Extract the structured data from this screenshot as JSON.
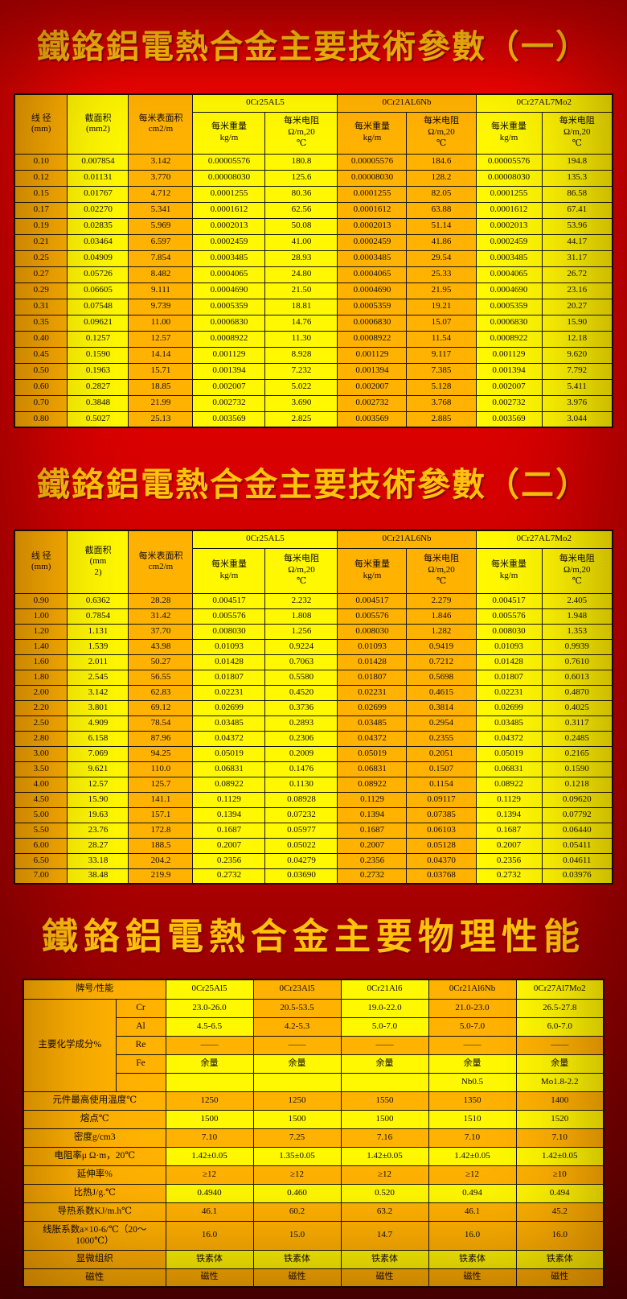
{
  "titles": {
    "t1": "鐵鉻鋁電熱合金主要技術參數（一）",
    "t2": "鐵鉻鋁電熱合金主要技術參數（二）",
    "t3": "鐵鉻鋁電熱合金主要物理性能"
  },
  "colors": {
    "cell_orange": "#ffb200",
    "cell_yellow": "#fff800",
    "background_red": "#d60000",
    "title_gold": "#ffc30e",
    "text_black": "#100c00"
  },
  "table1": {
    "headers": {
      "diameter": "线 径\n(mm)",
      "section_area": "截面积\n(mm2)",
      "surface_area": "每米表面积\ncm2/m",
      "weight": "每米重量\nkg/m",
      "resistance": "每米电阻\nΩ/m,20\n℃"
    },
    "groups": [
      "0Cr25AL5",
      "0Cr21AL6Nb",
      "0Cr27AL7Mo2"
    ],
    "tints": "oyoyyooyy",
    "rows": [
      [
        "0.10",
        "0.007854",
        "3.142",
        "0.00005576",
        "180.8",
        "0.00005576",
        "184.6",
        "0.00005576",
        "194.8"
      ],
      [
        "0.12",
        "0.01131",
        "3.770",
        "0.00008030",
        "125.6",
        "0.00008030",
        "128.2",
        "0.00008030",
        "135.3"
      ],
      [
        "0.15",
        "0.01767",
        "4.712",
        "0.0001255",
        "80.36",
        "0.0001255",
        "82.05",
        "0.0001255",
        "86.58"
      ],
      [
        "0.17",
        "0.02270",
        "5.341",
        "0.0001612",
        "62.56",
        "0.0001612",
        "63.88",
        "0.0001612",
        "67.41"
      ],
      [
        "0.19",
        "0.02835",
        "5.969",
        "0.0002013",
        "50.08",
        "0.0002013",
        "51.14",
        "0.0002013",
        "53.96"
      ],
      [
        "0.21",
        "0.03464",
        "6.597",
        "0.0002459",
        "41.00",
        "0.0002459",
        "41.86",
        "0.0002459",
        "44.17"
      ],
      [
        "0.25",
        "0.04909",
        "7.854",
        "0.0003485",
        "28.93",
        "0.0003485",
        "29.54",
        "0.0003485",
        "31.17"
      ],
      [
        "0.27",
        "0.05726",
        "8.482",
        "0.0004065",
        "24.80",
        "0.0004065",
        "25.33",
        "0.0004065",
        "26.72"
      ],
      [
        "0.29",
        "0.06605",
        "9.111",
        "0.0004690",
        "21.50",
        "0.0004690",
        "21.95",
        "0.0004690",
        "23.16"
      ],
      [
        "0.31",
        "0.07548",
        "9.739",
        "0.0005359",
        "18.81",
        "0.0005359",
        "19.21",
        "0.0005359",
        "20.27"
      ],
      [
        "0.35",
        "0.09621",
        "11.00",
        "0.0006830",
        "14.76",
        "0.0006830",
        "15.07",
        "0.0006830",
        "15.90"
      ],
      [
        "0.40",
        "0.1257",
        "12.57",
        "0.0008922",
        "11.30",
        "0.0008922",
        "11.54",
        "0.0008922",
        "12.18"
      ],
      [
        "0.45",
        "0.1590",
        "14.14",
        "0.001129",
        "8.928",
        "0.001129",
        "9.117",
        "0.001129",
        "9.620"
      ],
      [
        "0.50",
        "0.1963",
        "15.71",
        "0.001394",
        "7.232",
        "0.001394",
        "7.385",
        "0.001394",
        "7.792"
      ],
      [
        "0.60",
        "0.2827",
        "18.85",
        "0.002007",
        "5.022",
        "0.002007",
        "5.128",
        "0.002007",
        "5.411"
      ],
      [
        "0.70",
        "0.3848",
        "21.99",
        "0.002732",
        "3.690",
        "0.002732",
        "3.768",
        "0.002732",
        "3.976"
      ],
      [
        "0.80",
        "0.5027",
        "25.13",
        "0.003569",
        "2.825",
        "0.003569",
        "2.885",
        "0.003569",
        "3.044"
      ]
    ]
  },
  "table2": {
    "headers": {
      "diameter": "线 径\n(mm)",
      "section_area": "截面积\n(mm\n2)",
      "surface_area": "每米表面积\ncm2/m",
      "weight": "每米重量\nkg/m",
      "resistance": "每米电阻\nΩ/m,20\n℃"
    },
    "groups": [
      "0Cr25AL5",
      "0Cr21AL6Nb",
      "0Cr27AL7Mo2"
    ],
    "tints": "oyoyyooyy",
    "rows": [
      [
        "0.90",
        "0.6362",
        "28.28",
        "0.004517",
        "2.232",
        "0.004517",
        "2.279",
        "0.004517",
        "2.405"
      ],
      [
        "1.00",
        "0.7854",
        "31.42",
        "0.005576",
        "1.808",
        "0.005576",
        "1.846",
        "0.005576",
        "1.948"
      ],
      [
        "1.20",
        "1.131",
        "37.70",
        "0.008030",
        "1.256",
        "0.008030",
        "1.282",
        "0.008030",
        "1.353"
      ],
      [
        "1.40",
        "1.539",
        "43.98",
        "0.01093",
        "0.9224",
        "0.01093",
        "0.9419",
        "0.01093",
        "0.9939"
      ],
      [
        "1.60",
        "2.011",
        "50.27",
        "0.01428",
        "0.7063",
        "0.01428",
        "0.7212",
        "0.01428",
        "0.7610"
      ],
      [
        "1.80",
        "2.545",
        "56.55",
        "0.01807",
        "0.5580",
        "0.01807",
        "0.5698",
        "0.01807",
        "0.6013"
      ],
      [
        "2.00",
        "3.142",
        "62.83",
        "0.02231",
        "0.4520",
        "0.02231",
        "0.4615",
        "0.02231",
        "0.4870"
      ],
      [
        "2.20",
        "3.801",
        "69.12",
        "0.02699",
        "0.3736",
        "0.02699",
        "0.3814",
        "0.02699",
        "0.4025"
      ],
      [
        "2.50",
        "4.909",
        "78.54",
        "0.03485",
        "0.2893",
        "0.03485",
        "0.2954",
        "0.03485",
        "0.3117"
      ],
      [
        "2.80",
        "6.158",
        "87.96",
        "0.04372",
        "0.2306",
        "0.04372",
        "0.2355",
        "0.04372",
        "0.2485"
      ],
      [
        "3.00",
        "7.069",
        "94.25",
        "0.05019",
        "0.2009",
        "0.05019",
        "0.2051",
        "0.05019",
        "0.2165"
      ],
      [
        "3.50",
        "9.621",
        "110.0",
        "0.06831",
        "0.1476",
        "0.06831",
        "0.1507",
        "0.06831",
        "0.1590"
      ],
      [
        "4.00",
        "12.57",
        "125.7",
        "0.08922",
        "0.1130",
        "0.08922",
        "0.1154",
        "0.08922",
        "0.1218"
      ],
      [
        "4.50",
        "15.90",
        "141.1",
        "0.1129",
        "0.08928",
        "0.1129",
        "0.09117",
        "0.1129",
        "0.09620"
      ],
      [
        "5.00",
        "19.63",
        "157.1",
        "0.1394",
        "0.07232",
        "0.1394",
        "0.07385",
        "0.1394",
        "0.07792"
      ],
      [
        "5.50",
        "23.76",
        "172.8",
        "0.1687",
        "0.05977",
        "0.1687",
        "0.06103",
        "0.1687",
        "0.06440"
      ],
      [
        "6.00",
        "28.27",
        "188.5",
        "0.2007",
        "0.05022",
        "0.2007",
        "0.05128",
        "0.2007",
        "0.05411"
      ],
      [
        "6.50",
        "33.18",
        "204.2",
        "0.2356",
        "0.04279",
        "0.2356",
        "0.04370",
        "0.2356",
        "0.04611"
      ],
      [
        "7.00",
        "38.48",
        "219.9",
        "0.2732",
        "0.03690",
        "0.2732",
        "0.03768",
        "0.2732",
        "0.03976"
      ]
    ]
  },
  "table3": {
    "corner": "牌号/性能",
    "alloys": [
      "0Cr25Al5",
      "0Cr23Al5",
      "0Cr21Al6",
      "0Cr21Al6Nb",
      "0Cr27Al7Mo2"
    ],
    "alloys_tint": "yoyoy",
    "chem_label": "主要化学成分%",
    "rows": [
      {
        "label": "Cr",
        "type": "chem",
        "tint": "yoyoy",
        "values": [
          "23.0-26.0",
          "20.5-53.5",
          "19.0-22.0",
          "21.0-23.0",
          "26.5-27.8"
        ]
      },
      {
        "label": "Al",
        "type": "chem",
        "tint": "yoyoy",
        "values": [
          "4.5-6.5",
          "4.2-5.3",
          "5.0-7.0",
          "5.0-7.0",
          "6.0-7.0"
        ]
      },
      {
        "label": "Re",
        "type": "chem",
        "tint": "ooooo",
        "values": [
          "——",
          "——",
          "——",
          "——",
          "——"
        ]
      },
      {
        "label": "Fe",
        "type": "chem",
        "tint": "yyyyy",
        "values": [
          "余量",
          "余量",
          "余量",
          "余量",
          "余量"
        ]
      },
      {
        "label": "",
        "type": "chem",
        "tint": "yyyyy",
        "values": [
          "",
          "",
          "",
          "Nb0.5",
          "Mo1.8-2.2"
        ]
      },
      {
        "label": "元件最高使用温度℃",
        "type": "prop",
        "tint": "ooooo",
        "values": [
          "1250",
          "1250",
          "1550",
          "1350",
          "1400"
        ]
      },
      {
        "label": "熔点℃",
        "type": "prop",
        "tint": "yyyyy",
        "values": [
          "1500",
          "1500",
          "1500",
          "1510",
          "1520"
        ]
      },
      {
        "label": "密度g/cm3",
        "type": "prop",
        "tint": "ooooo",
        "values": [
          "7.10",
          "7.25",
          "7.16",
          "7.10",
          "7.10"
        ]
      },
      {
        "label": "电阻率μ Ω·m，20℃",
        "type": "prop",
        "tint": "yyyyy",
        "values": [
          "1.42±0.05",
          "1.35±0.05",
          "1.42±0.05",
          "1.42±0.05",
          "1.42±0.05"
        ]
      },
      {
        "label": "延伸率%",
        "type": "prop",
        "tint": "ooooo",
        "values": [
          "≥12",
          "≥12",
          "≥12",
          "≥12",
          "≥10"
        ]
      },
      {
        "label": "比热J/g.℃",
        "type": "prop",
        "tint": "yyyyy",
        "values": [
          "0.4940",
          "0.460",
          "0.520",
          "0.494",
          "0.494"
        ]
      },
      {
        "label": "导热系数KJ/m.h℃",
        "type": "prop",
        "tint": "ooooo",
        "values": [
          "46.1",
          "60.2",
          "63.2",
          "46.1",
          "45.2"
        ]
      },
      {
        "label": "线胀系数a×10-6/℃（20～\n1000℃）",
        "type": "prop",
        "tint": "ooooo",
        "tall": true,
        "values": [
          "16.0",
          "15.0",
          "14.7",
          "16.0",
          "16.0"
        ]
      },
      {
        "label": "显微组织",
        "type": "prop",
        "tint": "yyyyy",
        "values": [
          "铁素体",
          "铁素体",
          "铁素体",
          "铁素体",
          "铁素体"
        ]
      },
      {
        "label": "磁性",
        "type": "prop",
        "tint": "ooooo",
        "values": [
          "磁性",
          "磁性",
          "磁性",
          "磁性",
          "磁性"
        ]
      }
    ]
  }
}
